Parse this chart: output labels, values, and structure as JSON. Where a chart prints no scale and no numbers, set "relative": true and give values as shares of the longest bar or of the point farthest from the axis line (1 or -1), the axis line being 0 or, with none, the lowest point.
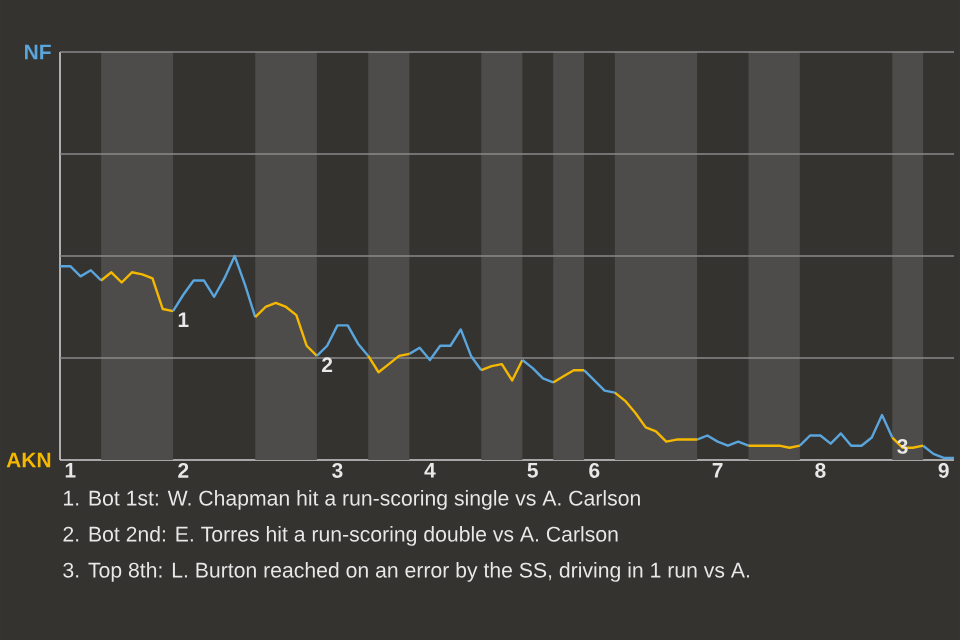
{
  "chart_data": {
    "type": "line",
    "relative": true,
    "ref_lines": [
      {
        "axis": "y",
        "value": 0.5,
        "color": "#8a8a8a"
      },
      {
        "axis": "y",
        "value": 1,
        "color": "#8a8a8a"
      },
      {
        "axis": "y",
        "value": 1.5,
        "color": "#8a8a8a"
      }
    ],
    "categories": [
      null,
      "1",
      null,
      null,
      null,
      null,
      null,
      null,
      null,
      null,
      null,
      null,
      "2",
      null,
      null,
      null,
      null,
      null,
      null,
      null,
      null,
      null,
      null,
      null,
      null,
      null,
      null,
      "3",
      null,
      null,
      null,
      null,
      null,
      null,
      null,
      null,
      "4",
      null,
      null,
      null,
      null,
      null,
      null,
      null,
      null,
      null,
      "5",
      null,
      null,
      null,
      null,
      null,
      "6",
      null,
      null,
      null,
      null,
      null,
      null,
      null,
      null,
      null,
      null,
      null,
      "7",
      null,
      null,
      null,
      null,
      null,
      null,
      null,
      null,
      null,
      "8",
      null,
      null,
      null,
      null,
      null,
      null,
      null,
      null,
      null,
      null,
      null,
      "9",
      null
    ],
    "series": [
      {
        "name": "NF",
        "color": "#5aa5dc",
        "values": [
          0.95,
          0.95,
          0.9,
          0.93,
          0.88,
          null,
          null,
          null,
          null,
          null,
          null,
          null,
          null,
          null,
          null,
          null,
          null,
          null,
          null,
          null,
          null,
          null,
          null,
          null,
          null,
          null,
          null,
          null,
          null,
          null,
          null,
          null,
          null,
          null,
          null,
          null,
          null,
          null,
          null,
          null,
          null,
          null,
          null,
          null,
          null,
          null,
          null,
          null,
          null,
          null,
          null,
          null,
          null,
          null,
          null,
          null,
          null,
          null,
          null,
          null,
          null,
          null,
          null,
          null,
          null,
          null,
          null,
          null,
          null,
          null,
          null,
          null,
          null,
          null,
          null,
          null,
          null,
          null,
          null,
          null,
          null,
          null,
          null,
          null,
          null,
          null,
          null,
          null
        ]
      },
      {
        "name": "AKN",
        "color": "#f5b800",
        "values": [
          null,
          null,
          null,
          null,
          0.88,
          0.92,
          0.87,
          0.92,
          0.91,
          0.89,
          0.74,
          0.73,
          null,
          null,
          null,
          null,
          null,
          null,
          null,
          null,
          null,
          null,
          null,
          null,
          null,
          null,
          null,
          null,
          null,
          null,
          null,
          null,
          null,
          null,
          null,
          null,
          null,
          null,
          null,
          null,
          null,
          null,
          null,
          null,
          null,
          null,
          null,
          null,
          null,
          null,
          null,
          null,
          null,
          null,
          null,
          null,
          null,
          null,
          null,
          null,
          null,
          null,
          null,
          null,
          null,
          null,
          null,
          null,
          null,
          null,
          null,
          null,
          null,
          null,
          null,
          null,
          null,
          null,
          null,
          null,
          null,
          null,
          null,
          null,
          null,
          null,
          null,
          null
        ]
      },
      {
        "color": "#5aa5dc",
        "values": [
          null,
          null,
          null,
          null,
          null,
          null,
          null,
          null,
          null,
          null,
          null,
          0.73,
          0.81,
          0.88,
          0.88,
          0.8,
          0.89,
          1,
          0.86,
          0.7,
          null,
          null,
          null,
          null,
          null,
          null,
          null,
          null,
          null,
          null,
          null,
          null,
          null,
          null,
          null,
          null,
          null,
          null,
          null,
          null,
          null,
          null,
          null,
          null,
          null,
          null,
          null,
          null,
          null,
          null,
          null,
          null,
          null,
          null,
          null,
          null,
          null,
          null,
          null,
          null,
          null,
          null,
          null,
          null,
          null,
          null,
          null,
          null,
          null,
          null,
          null,
          null,
          null,
          null,
          null,
          null,
          null,
          null,
          null,
          null,
          null,
          null,
          null,
          null,
          null,
          null,
          null,
          null
        ]
      },
      {
        "color": "#f5b800",
        "values": [
          null,
          null,
          null,
          null,
          null,
          null,
          null,
          null,
          null,
          null,
          null,
          null,
          null,
          null,
          null,
          null,
          null,
          null,
          null,
          0.7,
          0.75,
          0.77,
          0.75,
          0.71,
          0.56,
          0.51,
          null,
          null,
          null,
          null,
          null,
          null,
          null,
          null,
          null,
          null,
          null,
          null,
          null,
          null,
          null,
          null,
          null,
          null,
          null,
          null,
          null,
          null,
          null,
          null,
          null,
          null,
          null,
          null,
          null,
          null,
          null,
          null,
          null,
          null,
          null,
          null,
          null,
          null,
          null,
          null,
          null,
          null,
          null,
          null,
          null,
          null,
          null,
          null,
          null,
          null,
          null,
          null,
          null,
          null,
          null,
          null,
          null,
          null,
          null,
          null,
          null,
          null
        ]
      },
      {
        "color": "#5aa5dc",
        "values": [
          null,
          null,
          null,
          null,
          null,
          null,
          null,
          null,
          null,
          null,
          null,
          null,
          null,
          null,
          null,
          null,
          null,
          null,
          null,
          null,
          null,
          null,
          null,
          null,
          null,
          0.51,
          0.56,
          0.66,
          0.66,
          0.57,
          0.51,
          null,
          null,
          null,
          null,
          null,
          null,
          null,
          null,
          null,
          null,
          null,
          null,
          null,
          null,
          null,
          null,
          null,
          null,
          null,
          null,
          null,
          null,
          null,
          null,
          null,
          null,
          null,
          null,
          null,
          null,
          null,
          null,
          null,
          null,
          null,
          null,
          null,
          null,
          null,
          null,
          null,
          null,
          null,
          null,
          null,
          null,
          null,
          null,
          null,
          null,
          null,
          null,
          null,
          null,
          null,
          null,
          null
        ]
      },
      {
        "color": "#f5b800",
        "values": [
          null,
          null,
          null,
          null,
          null,
          null,
          null,
          null,
          null,
          null,
          null,
          null,
          null,
          null,
          null,
          null,
          null,
          null,
          null,
          null,
          null,
          null,
          null,
          null,
          null,
          null,
          null,
          null,
          null,
          null,
          0.51,
          0.43,
          0.47,
          0.51,
          0.52,
          null,
          null,
          null,
          null,
          null,
          null,
          null,
          null,
          null,
          null,
          null,
          null,
          null,
          null,
          null,
          null,
          null,
          null,
          null,
          null,
          null,
          null,
          null,
          null,
          null,
          null,
          null,
          null,
          null,
          null,
          null,
          null,
          null,
          null,
          null,
          null,
          null,
          null,
          null,
          null,
          null,
          null,
          null,
          null,
          null,
          null,
          null,
          null,
          null,
          null,
          null,
          null,
          null
        ]
      },
      {
        "color": "#5aa5dc",
        "values": [
          null,
          null,
          null,
          null,
          null,
          null,
          null,
          null,
          null,
          null,
          null,
          null,
          null,
          null,
          null,
          null,
          null,
          null,
          null,
          null,
          null,
          null,
          null,
          null,
          null,
          null,
          null,
          null,
          null,
          null,
          null,
          null,
          null,
          null,
          0.52,
          0.55,
          0.49,
          0.56,
          0.56,
          0.64,
          0.51,
          0.44,
          null,
          null,
          null,
          null,
          null,
          null,
          null,
          null,
          null,
          null,
          null,
          null,
          null,
          null,
          null,
          null,
          null,
          null,
          null,
          null,
          null,
          null,
          null,
          null,
          null,
          null,
          null,
          null,
          null,
          null,
          null,
          null,
          null,
          null,
          null,
          null,
          null,
          null,
          null,
          null,
          null,
          null,
          null,
          null,
          null,
          null
        ]
      },
      {
        "color": "#f5b800",
        "values": [
          null,
          null,
          null,
          null,
          null,
          null,
          null,
          null,
          null,
          null,
          null,
          null,
          null,
          null,
          null,
          null,
          null,
          null,
          null,
          null,
          null,
          null,
          null,
          null,
          null,
          null,
          null,
          null,
          null,
          null,
          null,
          null,
          null,
          null,
          null,
          null,
          null,
          null,
          null,
          null,
          null,
          0.44,
          0.46,
          0.47,
          0.39,
          0.49,
          null,
          null,
          null,
          null,
          null,
          null,
          null,
          null,
          null,
          null,
          null,
          null,
          null,
          null,
          null,
          null,
          null,
          null,
          null,
          null,
          null,
          null,
          null,
          null,
          null,
          null,
          null,
          null,
          null,
          null,
          null,
          null,
          null,
          null,
          null,
          null,
          null,
          null,
          null,
          null,
          null,
          null
        ]
      },
      {
        "color": "#5aa5dc",
        "values": [
          null,
          null,
          null,
          null,
          null,
          null,
          null,
          null,
          null,
          null,
          null,
          null,
          null,
          null,
          null,
          null,
          null,
          null,
          null,
          null,
          null,
          null,
          null,
          null,
          null,
          null,
          null,
          null,
          null,
          null,
          null,
          null,
          null,
          null,
          null,
          null,
          null,
          null,
          null,
          null,
          null,
          null,
          null,
          null,
          null,
          0.49,
          0.45,
          0.4,
          0.38,
          null,
          null,
          null,
          null,
          null,
          null,
          null,
          null,
          null,
          null,
          null,
          null,
          null,
          null,
          null,
          null,
          null,
          null,
          null,
          null,
          null,
          null,
          null,
          null,
          null,
          null,
          null,
          null,
          null,
          null,
          null,
          null,
          null,
          null,
          null,
          null,
          null,
          null,
          null
        ]
      },
      {
        "color": "#f5b800",
        "values": [
          null,
          null,
          null,
          null,
          null,
          null,
          null,
          null,
          null,
          null,
          null,
          null,
          null,
          null,
          null,
          null,
          null,
          null,
          null,
          null,
          null,
          null,
          null,
          null,
          null,
          null,
          null,
          null,
          null,
          null,
          null,
          null,
          null,
          null,
          null,
          null,
          null,
          null,
          null,
          null,
          null,
          null,
          null,
          null,
          null,
          null,
          null,
          null,
          0.38,
          0.41,
          0.44,
          0.44,
          null,
          null,
          null,
          null,
          null,
          null,
          null,
          null,
          null,
          null,
          null,
          null,
          null,
          null,
          null,
          null,
          null,
          null,
          null,
          null,
          null,
          null,
          null,
          null,
          null,
          null,
          null,
          null,
          null,
          null,
          null,
          null,
          null,
          null,
          null,
          null
        ]
      },
      {
        "color": "#5aa5dc",
        "values": [
          null,
          null,
          null,
          null,
          null,
          null,
          null,
          null,
          null,
          null,
          null,
          null,
          null,
          null,
          null,
          null,
          null,
          null,
          null,
          null,
          null,
          null,
          null,
          null,
          null,
          null,
          null,
          null,
          null,
          null,
          null,
          null,
          null,
          null,
          null,
          null,
          null,
          null,
          null,
          null,
          null,
          null,
          null,
          null,
          null,
          null,
          null,
          null,
          null,
          null,
          null,
          0.44,
          0.39,
          0.34,
          0.33,
          null,
          null,
          null,
          null,
          null,
          null,
          null,
          null,
          null,
          null,
          null,
          null,
          null,
          null,
          null,
          null,
          null,
          null,
          null,
          null,
          null,
          null,
          null,
          null,
          null,
          null,
          null,
          null,
          null,
          null,
          null,
          null,
          null
        ]
      },
      {
        "color": "#f5b800",
        "values": [
          null,
          null,
          null,
          null,
          null,
          null,
          null,
          null,
          null,
          null,
          null,
          null,
          null,
          null,
          null,
          null,
          null,
          null,
          null,
          null,
          null,
          null,
          null,
          null,
          null,
          null,
          null,
          null,
          null,
          null,
          null,
          null,
          null,
          null,
          null,
          null,
          null,
          null,
          null,
          null,
          null,
          null,
          null,
          null,
          null,
          null,
          null,
          null,
          null,
          null,
          null,
          null,
          null,
          null,
          0.33,
          0.29,
          0.23,
          0.16,
          0.14,
          0.09,
          0.1,
          0.1,
          0.1,
          null,
          null,
          null,
          null,
          null,
          null,
          null,
          null,
          null,
          null,
          null,
          null,
          null,
          null,
          null,
          null,
          null,
          null,
          null,
          null,
          null,
          null,
          null,
          null,
          null
        ]
      },
      {
        "color": "#5aa5dc",
        "values": [
          null,
          null,
          null,
          null,
          null,
          null,
          null,
          null,
          null,
          null,
          null,
          null,
          null,
          null,
          null,
          null,
          null,
          null,
          null,
          null,
          null,
          null,
          null,
          null,
          null,
          null,
          null,
          null,
          null,
          null,
          null,
          null,
          null,
          null,
          null,
          null,
          null,
          null,
          null,
          null,
          null,
          null,
          null,
          null,
          null,
          null,
          null,
          null,
          null,
          null,
          null,
          null,
          null,
          null,
          null,
          null,
          null,
          null,
          null,
          null,
          null,
          null,
          0.1,
          0.12,
          0.09,
          0.07,
          0.09,
          0.07,
          null,
          null,
          null,
          null,
          null,
          null,
          null,
          null,
          null,
          null,
          null,
          null,
          null,
          null,
          null,
          null,
          null,
          null,
          null,
          null
        ]
      },
      {
        "color": "#f5b800",
        "values": [
          null,
          null,
          null,
          null,
          null,
          null,
          null,
          null,
          null,
          null,
          null,
          null,
          null,
          null,
          null,
          null,
          null,
          null,
          null,
          null,
          null,
          null,
          null,
          null,
          null,
          null,
          null,
          null,
          null,
          null,
          null,
          null,
          null,
          null,
          null,
          null,
          null,
          null,
          null,
          null,
          null,
          null,
          null,
          null,
          null,
          null,
          null,
          null,
          null,
          null,
          null,
          null,
          null,
          null,
          null,
          null,
          null,
          null,
          null,
          null,
          null,
          null,
          null,
          null,
          null,
          null,
          null,
          0.07,
          0.07,
          0.07,
          0.07,
          0.06,
          0.07,
          null,
          null,
          null,
          null,
          null,
          null,
          null,
          null,
          null,
          null,
          null,
          null,
          null,
          null,
          null
        ]
      },
      {
        "color": "#5aa5dc",
        "values": [
          null,
          null,
          null,
          null,
          null,
          null,
          null,
          null,
          null,
          null,
          null,
          null,
          null,
          null,
          null,
          null,
          null,
          null,
          null,
          null,
          null,
          null,
          null,
          null,
          null,
          null,
          null,
          null,
          null,
          null,
          null,
          null,
          null,
          null,
          null,
          null,
          null,
          null,
          null,
          null,
          null,
          null,
          null,
          null,
          null,
          null,
          null,
          null,
          null,
          null,
          null,
          null,
          null,
          null,
          null,
          null,
          null,
          null,
          null,
          null,
          null,
          null,
          null,
          null,
          null,
          null,
          null,
          null,
          null,
          null,
          null,
          null,
          0.07,
          0.12,
          0.12,
          0.08,
          0.13,
          0.07,
          0.07,
          0.11,
          0.22,
          0.11,
          null,
          null,
          null,
          null,
          null,
          null
        ]
      },
      {
        "color": "#f5b800",
        "values": [
          null,
          null,
          null,
          null,
          null,
          null,
          null,
          null,
          null,
          null,
          null,
          null,
          null,
          null,
          null,
          null,
          null,
          null,
          null,
          null,
          null,
          null,
          null,
          null,
          null,
          null,
          null,
          null,
          null,
          null,
          null,
          null,
          null,
          null,
          null,
          null,
          null,
          null,
          null,
          null,
          null,
          null,
          null,
          null,
          null,
          null,
          null,
          null,
          null,
          null,
          null,
          null,
          null,
          null,
          null,
          null,
          null,
          null,
          null,
          null,
          null,
          null,
          null,
          null,
          null,
          null,
          null,
          null,
          null,
          null,
          null,
          null,
          null,
          null,
          null,
          null,
          null,
          null,
          null,
          null,
          null,
          0.11,
          0.06,
          0.06,
          0.07,
          null,
          null,
          null
        ]
      },
      {
        "color": "#5aa5dc",
        "values": [
          null,
          null,
          null,
          null,
          null,
          null,
          null,
          null,
          null,
          null,
          null,
          null,
          null,
          null,
          null,
          null,
          null,
          null,
          null,
          null,
          null,
          null,
          null,
          null,
          null,
          null,
          null,
          null,
          null,
          null,
          null,
          null,
          null,
          null,
          null,
          null,
          null,
          null,
          null,
          null,
          null,
          null,
          null,
          null,
          null,
          null,
          null,
          null,
          null,
          null,
          null,
          null,
          null,
          null,
          null,
          null,
          null,
          null,
          null,
          null,
          null,
          null,
          null,
          null,
          null,
          null,
          null,
          null,
          null,
          null,
          null,
          null,
          null,
          null,
          null,
          null,
          null,
          null,
          null,
          null,
          null,
          null,
          null,
          null,
          0.07,
          0.03,
          0.01,
          0.01
        ]
      }
    ],
    "annotations": [
      {
        "text": "1",
        "y": 0.73
      },
      {
        "text": "2",
        "y": 0.51
      },
      {
        "text": "3",
        "y": 0.11
      },
      "1. Bot 1st: W. Chapman hit a run-scoring single vs A. Carlson",
      "2. Bot 2nd: E. Torres hit a run-scoring double vs A. Carlson",
      "3. Top 8th: L. Burton reached on an error by the SS, driving in 1 run vs A."
    ]
  }
}
